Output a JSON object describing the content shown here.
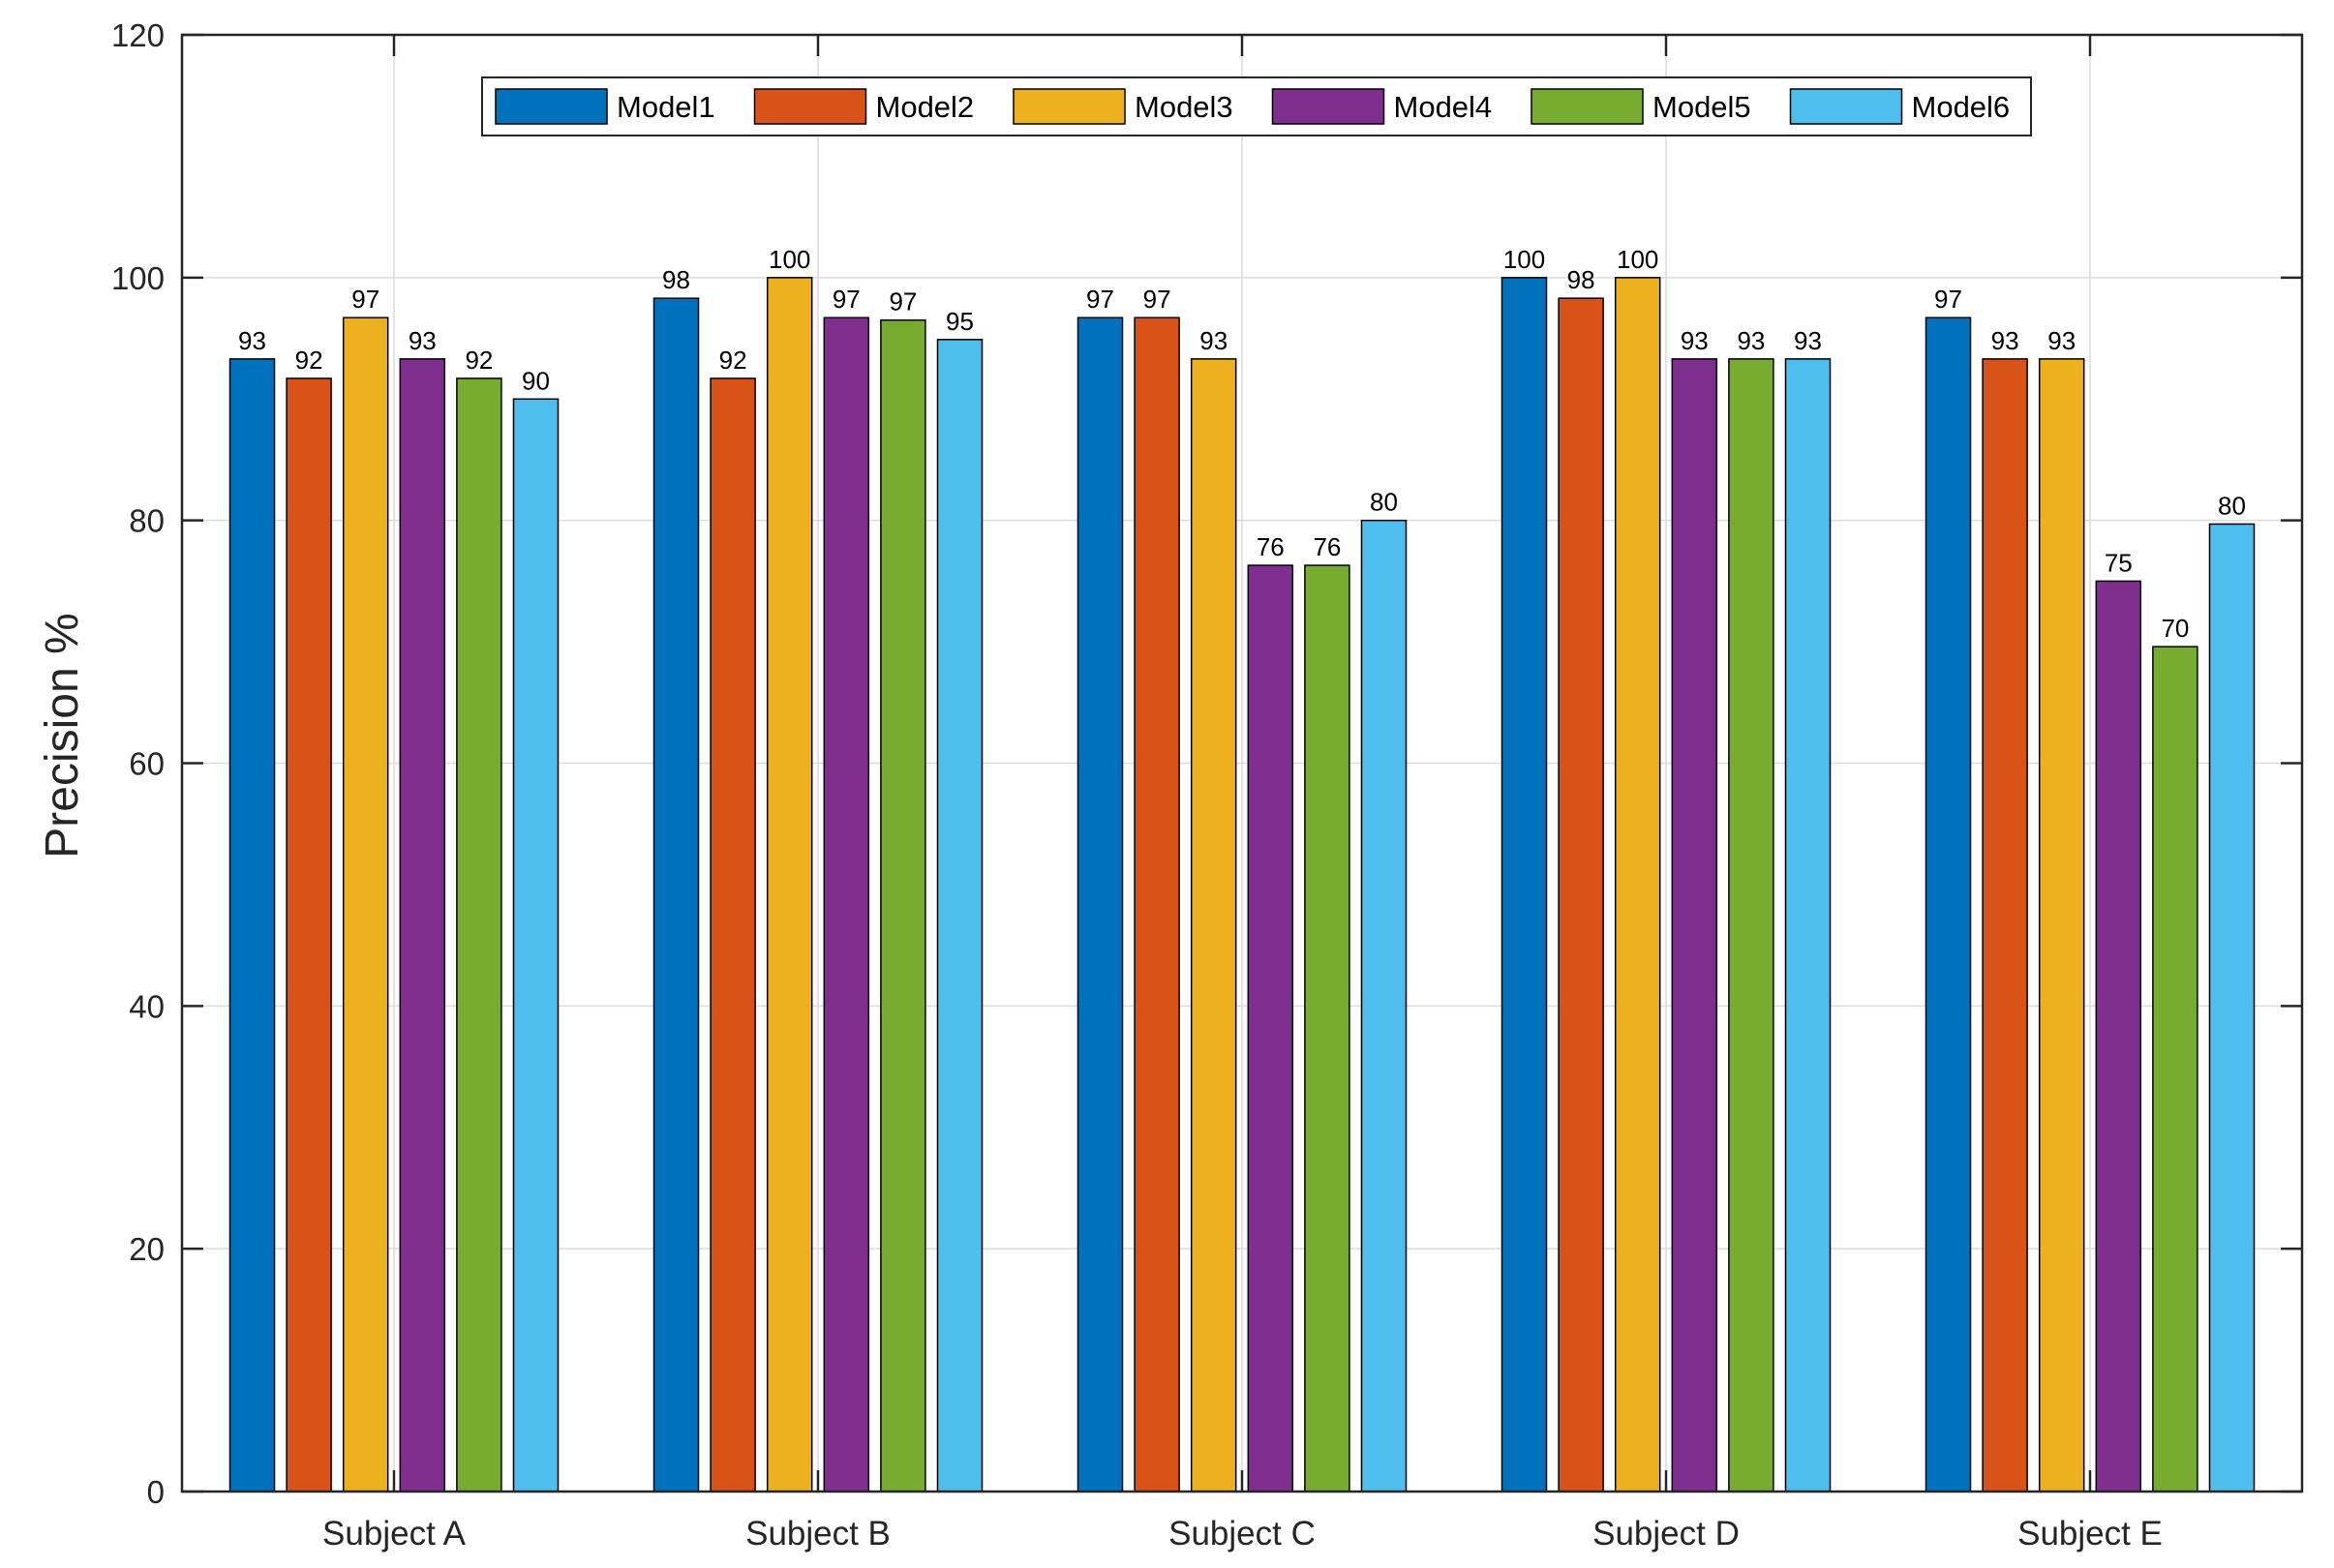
{
  "chart_data": {
    "type": "bar",
    "title": "",
    "xlabel": "",
    "ylabel": "Precision %",
    "ylim": [
      0,
      120
    ],
    "yticks": [
      0,
      20,
      40,
      60,
      80,
      100,
      120
    ],
    "grid": true,
    "legend_position": "top-center",
    "categories": [
      "Subject A",
      "Subject B",
      "Subject C",
      "Subject D",
      "Subject E"
    ],
    "series": [
      {
        "name": "Model1",
        "color": "#0072BD",
        "values": [
          93.3,
          98.3,
          96.7,
          100,
          96.7
        ],
        "labels": [
          "93",
          "98",
          "97",
          "100",
          "97"
        ]
      },
      {
        "name": "Model2",
        "color": "#D95319",
        "values": [
          91.7,
          91.7,
          96.7,
          98.3,
          93.3
        ],
        "labels": [
          "92",
          "92",
          "97",
          "98",
          "93"
        ]
      },
      {
        "name": "Model3",
        "color": "#EDB120",
        "values": [
          96.7,
          100,
          93.3,
          100,
          93.3
        ],
        "labels": [
          "97",
          "100",
          "93",
          "100",
          "93"
        ]
      },
      {
        "name": "Model4",
        "color": "#7E2F8E",
        "values": [
          93.3,
          96.7,
          76.3,
          93.3,
          75
        ],
        "labels": [
          "93",
          "97",
          "76",
          "93",
          "75"
        ]
      },
      {
        "name": "Model5",
        "color": "#77AC30",
        "values": [
          91.7,
          96.5,
          76.3,
          93.3,
          69.6
        ],
        "labels": [
          "92",
          "97",
          "76",
          "93",
          "70"
        ]
      },
      {
        "name": "Model6",
        "color": "#4DBEEE",
        "values": [
          90,
          94.9,
          80,
          93.3,
          79.7
        ],
        "labels": [
          "90",
          "95",
          "80",
          "93",
          "80"
        ]
      }
    ]
  }
}
